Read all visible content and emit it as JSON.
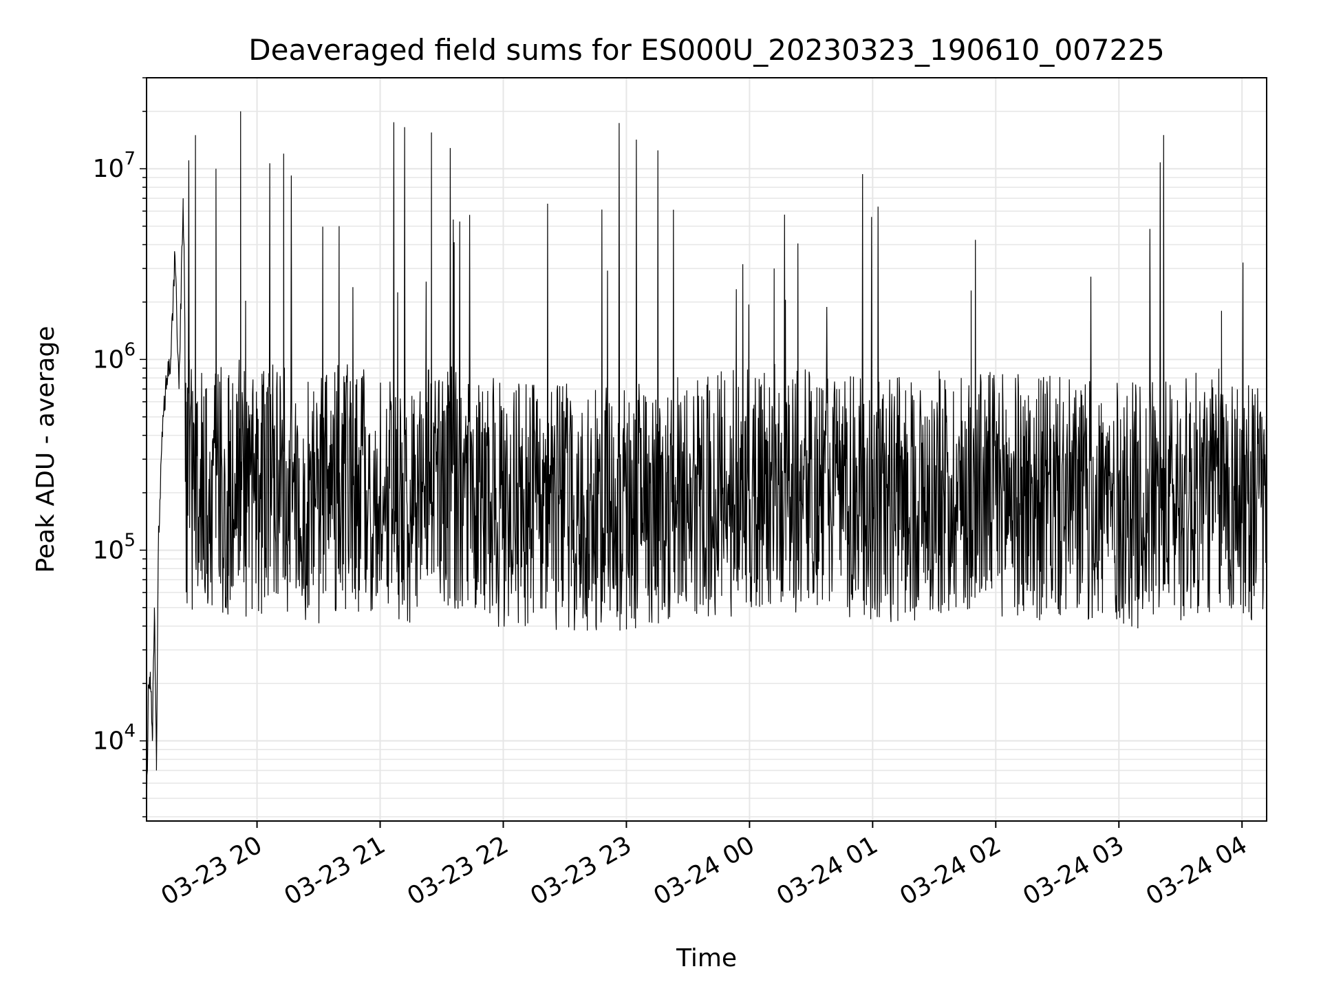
{
  "chart_data": {
    "type": "line",
    "title": "Deaveraged field sums for ES000U_20230323_190610_007225",
    "xlabel": "Time",
    "ylabel": "Peak ADU - average",
    "x_start": "2023-03-23 19:06:10",
    "x_end": "2023-03-24 04:12:00",
    "xlim": [
      "2023-03-23 19:06:10",
      "2023-03-24 04:12:00"
    ],
    "ylim": [
      3800,
      30000000
    ],
    "y_scale": "log",
    "grid": true,
    "x_tick_labels": [
      "03-23 20",
      "03-23 21",
      "03-23 22",
      "03-23 23",
      "03-24 00",
      "03-24 01",
      "03-24 02",
      "03-24 03",
      "03-24 04"
    ],
    "y_tick_labels": [
      {
        "base": "10",
        "exp": "4",
        "value": 10000
      },
      {
        "base": "10",
        "exp": "5",
        "value": 100000
      },
      {
        "base": "10",
        "exp": "6",
        "value": 1000000
      },
      {
        "base": "10",
        "exp": "7",
        "value": 10000000
      }
    ],
    "line_color": "#000000",
    "grid_color": "#e6e6e6",
    "series": [
      {
        "x": [
          "2023-03-23 19:06:10",
          "2023-03-23 19:07:00",
          "2023-03-23 19:08:00",
          "2023-03-23 19:09:00",
          "2023-03-23 19:10:00",
          "2023-03-23 19:11:00",
          "2023-03-23 19:12:00",
          "2023-03-23 19:14:00",
          "2023-03-23 19:16:00",
          "2023-03-23 19:18:00",
          "2023-03-23 19:20:00",
          "2023-03-23 19:22:00",
          "2023-03-23 19:24:00",
          "2023-03-23 19:25:30",
          "2023-03-23 19:27:00",
          "2023-03-23 19:30:00",
          "2023-03-23 19:35:00",
          "2023-03-23 19:40:00",
          "2023-03-23 19:46:00",
          "2023-03-23 19:52:00",
          "2023-03-23 19:55:00",
          "2023-03-23 20:13:00",
          "2023-03-23 20:16:00",
          "2023-03-23 20:30:00",
          "2023-03-23 20:40:00",
          "2023-03-23 21:20:00",
          "2023-03-23 21:25:00",
          "2023-03-23 22:00:00",
          "2023-03-23 23:00:00",
          "2023-03-24 00:12:00",
          "2023-03-24 01:00:00",
          "2023-03-24 01:48:00",
          "2023-03-24 02:40:00",
          "2023-03-24 03:12:00",
          "2023-03-24 03:50:00",
          "2023-03-24 04:10:00"
        ],
        "y": [
          3800,
          18000,
          23000,
          10000,
          50000,
          7000,
          120000,
          450000,
          800000,
          1000000,
          3500000,
          700000,
          7000000,
          600000,
          1000000,
          15000000,
          700000,
          10000000,
          800000,
          20000000,
          600000,
          12000000,
          300000,
          300000,
          5000000,
          300000,
          15500000,
          200000,
          150000,
          3000000,
          300000,
          2300000,
          300000,
          200000,
          1800000,
          300000
        ]
      }
    ]
  }
}
